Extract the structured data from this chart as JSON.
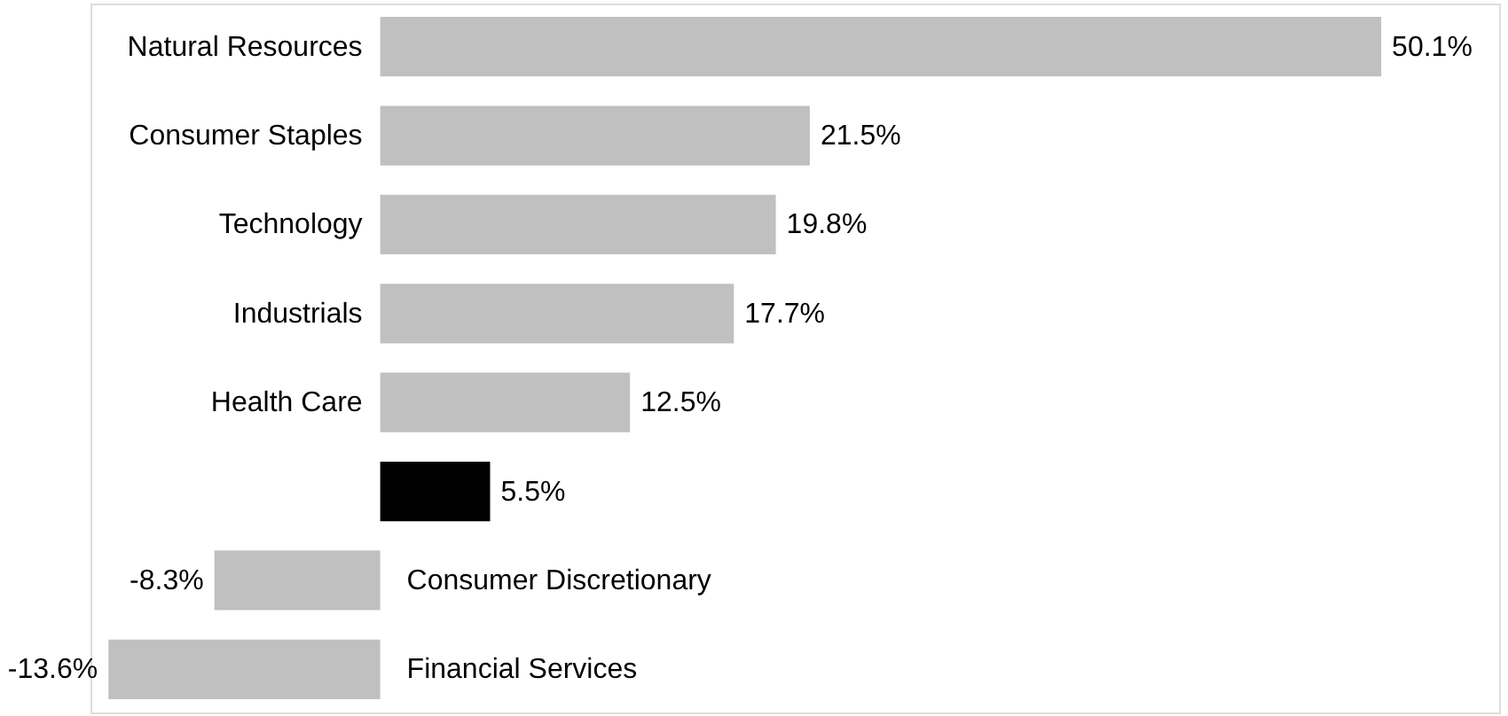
{
  "chart_data": {
    "type": "bar",
    "orientation": "horizontal",
    "categories": [
      "Natural Resources",
      "Consumer Staples",
      "Technology",
      "Industrials",
      "Health Care",
      null,
      "Consumer Discretionary",
      "Financial Services"
    ],
    "values": [
      50.1,
      21.5,
      19.8,
      17.7,
      12.5,
      5.5,
      -8.3,
      -13.6
    ],
    "value_labels": [
      "50.1%",
      "21.5%",
      "19.8%",
      "17.7%",
      "12.5%",
      "5.5%",
      "-8.3%",
      "-13.6%"
    ],
    "colors": [
      "#c0c0c0",
      "#c0c0c0",
      "#c0c0c0",
      "#c0c0c0",
      "#c0c0c0",
      "#000000",
      "#c0c0c0",
      "#c0c0c0"
    ],
    "xlim": [
      -14.5,
      56
    ],
    "tick_labels": false
  }
}
